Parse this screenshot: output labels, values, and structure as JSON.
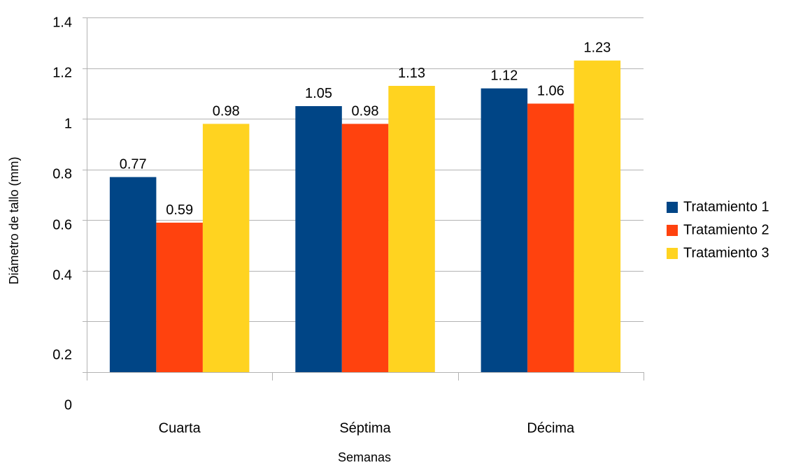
{
  "chart_data": {
    "type": "bar",
    "title": "",
    "xlabel": "Semanas",
    "ylabel": "Diámetro de tallo (mm)",
    "categories": [
      "Cuarta",
      "Séptima",
      "Décima"
    ],
    "series": [
      {
        "name": "Tratamiento 1",
        "color": "#004586",
        "values": [
          0.77,
          1.05,
          1.12
        ],
        "labels": [
          "0.77",
          "1.05",
          "1.12"
        ]
      },
      {
        "name": "Tratamiento 2",
        "color": "#ff420e",
        "values": [
          0.59,
          0.98,
          1.06
        ],
        "labels": [
          "0.59",
          "0.98",
          "1.06"
        ]
      },
      {
        "name": "Tratamiento 3",
        "color": "#ffd320",
        "values": [
          0.98,
          1.13,
          1.23
        ],
        "labels": [
          "0.98",
          "1.13",
          "1.23"
        ]
      }
    ],
    "ylim": [
      0,
      1.4
    ],
    "y_ticks": [
      {
        "value": 1.4,
        "label": "1.4"
      },
      {
        "value": 1.2,
        "label": "1.2"
      },
      {
        "value": 1.0,
        "label": "1"
      },
      {
        "value": 0.8,
        "label": "0.8"
      },
      {
        "value": 0.6,
        "label": "0.6"
      },
      {
        "value": 0.4,
        "label": "0.4"
      },
      {
        "value": 0.2,
        "label": "0.2"
      },
      {
        "value": 0.0,
        "label": "0"
      }
    ],
    "grid": true,
    "legend_position": "right"
  }
}
